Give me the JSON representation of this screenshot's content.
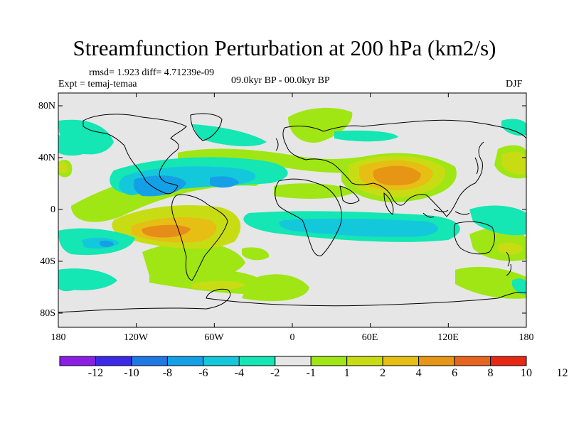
{
  "title": "Streamfunction Perturbation at 200 hPa (km2/s)",
  "stats": "rmsd= 1.923  diff= 4.71239e-09",
  "experiment": "Expt = temaj-temaa",
  "period": "09.0kyr BP - 00.0kyr BP",
  "season": "DJF",
  "axes": {
    "lat_ticks": [
      "80N",
      "40N",
      "0",
      "40S",
      "80S"
    ],
    "lon_ticks": [
      "180",
      "120W",
      "60W",
      "0",
      "60E",
      "120E",
      "180"
    ]
  },
  "colorbar": {
    "colors": [
      "#8c1ee6",
      "#3c28e6",
      "#1e78e6",
      "#14a0e6",
      "#14c8dc",
      "#14e6b4",
      "#e6e6e6",
      "#a0e614",
      "#c8dc14",
      "#e6be14",
      "#e69614",
      "#e6641e",
      "#e62814"
    ],
    "labels": [
      "-12",
      "-10",
      "-8",
      "-6",
      "-4",
      "-2",
      "-1",
      "1",
      "2",
      "4",
      "6",
      "8",
      "10",
      "12"
    ]
  },
  "map": {
    "background": "#e6e6e6",
    "anomalies": [
      {
        "name": "central-asia-positive-core",
        "color": "#e69614"
      },
      {
        "name": "south-pacific-positive-core",
        "color": "#e6641e"
      },
      {
        "name": "north-pacific-negative-core",
        "color": "#14a0e6"
      },
      {
        "name": "indian-ocean-negative-band",
        "color": "#14c8dc"
      }
    ]
  }
}
